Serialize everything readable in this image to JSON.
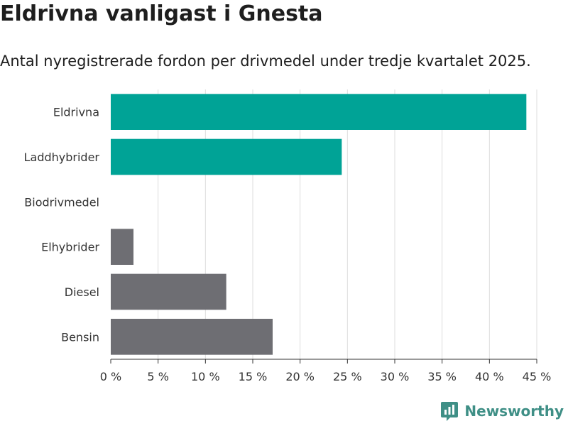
{
  "header": {
    "title": "Eldrivna vanligast i Gnesta",
    "subtitle": "Antal nyregistrerade fordon per drivmedel under tredje kvartalet 2025."
  },
  "brand": {
    "name": "Newsworthy",
    "icon": "newsworthy-logo-icon",
    "color": "#3f8f86"
  },
  "chart_data": {
    "type": "bar",
    "orientation": "horizontal",
    "title": "Eldrivna vanligast i Gnesta",
    "subtitle": "Antal nyregistrerade fordon per drivmedel under tredje kvartalet 2025.",
    "categories": [
      "Eldrivna",
      "Laddhybrider",
      "Biodrivmedel",
      "Elhybrider",
      "Diesel",
      "Bensin"
    ],
    "values": [
      43.9,
      24.4,
      0,
      2.4,
      12.2,
      17.1
    ],
    "colors": [
      "#00a396",
      "#00a396",
      "#6e6e73",
      "#6e6e73",
      "#6e6e73",
      "#6e6e73"
    ],
    "xlim": [
      0,
      45
    ],
    "xticks": [
      0,
      5,
      10,
      15,
      20,
      25,
      30,
      35,
      40,
      45
    ],
    "tick_suffix": " %",
    "xlabel": "",
    "ylabel": "",
    "grid": true
  }
}
